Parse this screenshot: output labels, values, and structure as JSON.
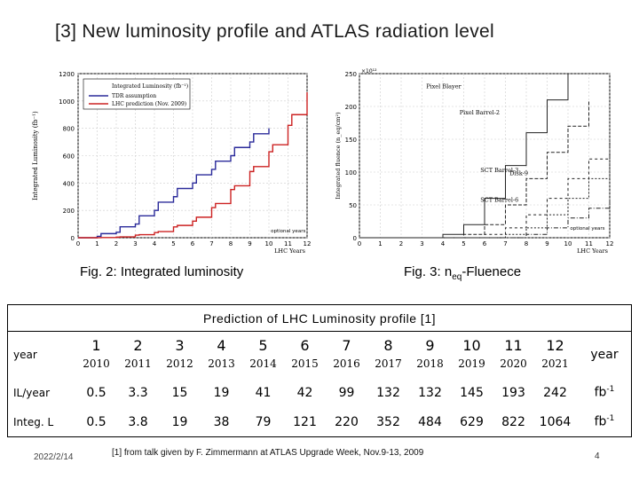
{
  "slide": {
    "title": "[3]  New luminosity profile and ATLAS radiation level",
    "date": "2022/2/14",
    "page_number": "4",
    "reference": "[1]  from talk given by F. Zimmermann at ATLAS Upgrade Week, Nov.9-13, 2009"
  },
  "fig2": {
    "caption": "Fig. 2: Integrated luminosity",
    "ylabel": "Integrated Luminosity (fb⁻¹)",
    "xlabel": "LHC Years",
    "yticks": [
      "0",
      "200",
      "400",
      "600",
      "800",
      "1000",
      "1200"
    ],
    "xticks": [
      "0",
      "1",
      "2",
      "3",
      "4",
      "5",
      "6",
      "7",
      "8",
      "9",
      "10",
      "11",
      "12"
    ],
    "legend": [
      "Integrated Luminosity (fb⁻¹)",
      "TDR assumption",
      "LHC prediction (Nov. 2009)"
    ],
    "annotation": "optional years"
  },
  "fig3": {
    "caption_prefix": "Fig. 3: n",
    "caption_sub": "eq",
    "caption_suffix": "-Fluenece",
    "ylabel": "Integrated fluence (n_eq/cm²)",
    "xlabel": "LHC Years",
    "exponent": "×10¹²",
    "yticks": [
      "0",
      "50",
      "100",
      "150",
      "200",
      "250"
    ],
    "xticks": [
      "0",
      "1",
      "2",
      "3",
      "4",
      "5",
      "6",
      "7",
      "8",
      "9",
      "10",
      "11",
      "12"
    ],
    "labels": [
      "Pixel Blayer",
      "Pixel Barrel-2",
      "SCT Barrel-3",
      "Disk-9",
      "SCT Barrel-6"
    ],
    "annotation": "optional years"
  },
  "table": {
    "title": "Prediction of LHC Luminosity profile [1]",
    "row_year_label": "year",
    "row_il_label": "IL/year",
    "row_integ_label": "Integ. L",
    "year_unit": "year",
    "fb_unit": "fb",
    "fb_exp": "-1",
    "numbers": [
      "1",
      "2",
      "3",
      "4",
      "5",
      "6",
      "7",
      "8",
      "9",
      "10",
      "11",
      "12"
    ],
    "years": [
      "2010",
      "2011",
      "2012",
      "2013",
      "2014",
      "2015",
      "2016",
      "2017",
      "2018",
      "2019",
      "2020",
      "2021"
    ],
    "il": [
      "0.5",
      "3.3",
      "15",
      "19",
      "41",
      "42",
      "99",
      "132",
      "132",
      "145",
      "193",
      "242"
    ],
    "integ": [
      "0.5",
      "3.8",
      "19",
      "38",
      "79",
      "121",
      "220",
      "352",
      "484",
      "629",
      "822",
      "1064"
    ]
  },
  "chart_data": [
    {
      "type": "line",
      "title": "Integrated luminosity",
      "xlabel": "LHC Years",
      "ylabel": "Integrated Luminosity (fb-1)",
      "xlim": [
        0,
        12
      ],
      "ylim": [
        0,
        1200
      ],
      "series": [
        {
          "name": "TDR assumption",
          "color": "#2a2a9a",
          "x": [
            0,
            1,
            1.2,
            2,
            2.2,
            3,
            3.2,
            4,
            4.2,
            5,
            5.2,
            6,
            6.2,
            7,
            7.2,
            8,
            8.2,
            9,
            9.2,
            10
          ],
          "y": [
            0,
            10,
            30,
            40,
            80,
            100,
            160,
            200,
            260,
            300,
            360,
            400,
            460,
            500,
            560,
            600,
            660,
            700,
            760,
            800
          ]
        },
        {
          "name": "LHC prediction (Nov. 2009)",
          "color": "#cc2222",
          "x": [
            0,
            1,
            1.2,
            2,
            2.2,
            3,
            3.2,
            4,
            4.2,
            5,
            5.2,
            6,
            6.2,
            7,
            7.2,
            8,
            8.2,
            9,
            9.2,
            10,
            10.2,
            11,
            11.2,
            12
          ],
          "y": [
            0,
            0.5,
            1,
            4,
            6,
            19,
            22,
            38,
            45,
            79,
            90,
            121,
            150,
            220,
            250,
            352,
            380,
            484,
            520,
            629,
            680,
            822,
            900,
            1064
          ]
        }
      ]
    },
    {
      "type": "line",
      "title": "neq-Fluence",
      "xlabel": "LHC Years",
      "ylabel": "Integrated fluence (neq/cm2) x10^12",
      "xlim": [
        0,
        12
      ],
      "ylim": [
        0,
        250
      ],
      "series": [
        {
          "name": "Pixel Blayer",
          "x": [
            0,
            4,
            5,
            6,
            7,
            8,
            9,
            10
          ],
          "y": [
            0,
            5,
            20,
            60,
            110,
            160,
            210,
            250
          ]
        },
        {
          "name": "Pixel Barrel-2",
          "x": [
            0,
            5,
            6,
            7,
            8,
            9,
            10,
            11
          ],
          "y": [
            0,
            5,
            20,
            50,
            90,
            130,
            170,
            210
          ]
        },
        {
          "name": "SCT Barrel-3",
          "x": [
            0,
            6,
            7,
            8,
            9,
            10,
            11,
            12
          ],
          "y": [
            0,
            5,
            15,
            35,
            60,
            90,
            120,
            150
          ]
        },
        {
          "name": "Disk-9",
          "x": [
            0,
            7,
            8,
            9,
            10,
            11,
            12
          ],
          "y": [
            0,
            5,
            15,
            35,
            60,
            90,
            120
          ]
        },
        {
          "name": "SCT Barrel-6",
          "x": [
            0,
            8,
            9,
            10,
            11,
            12
          ],
          "y": [
            0,
            5,
            15,
            30,
            45,
            60
          ]
        }
      ]
    }
  ]
}
